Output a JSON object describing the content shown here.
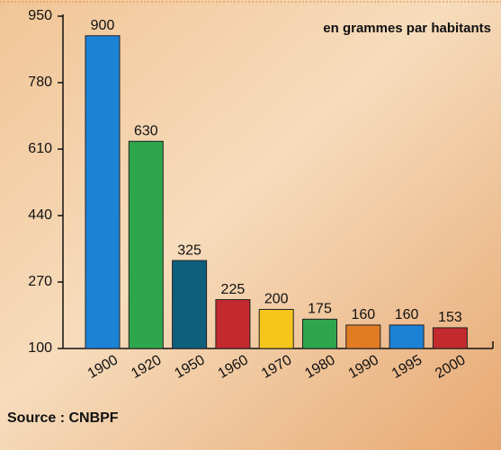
{
  "chart_data": {
    "type": "bar",
    "annotation": "en grammes par habitants",
    "source": "Source : CNBPF",
    "categories": [
      "1900",
      "1920",
      "1950",
      "1960",
      "1970",
      "1980",
      "1990",
      "1995",
      "2000"
    ],
    "values": [
      900,
      630,
      325,
      225,
      200,
      175,
      160,
      160,
      153
    ],
    "colors": [
      "#1c82d6",
      "#2ea64c",
      "#0e5f7c",
      "#c22a2e",
      "#f4c61c",
      "#2ea64c",
      "#e27c22",
      "#1c82d6",
      "#c22a2e"
    ],
    "ylim": [
      100,
      950
    ],
    "yticks": [
      100,
      270,
      440,
      610,
      780,
      950
    ],
    "grid": false
  }
}
